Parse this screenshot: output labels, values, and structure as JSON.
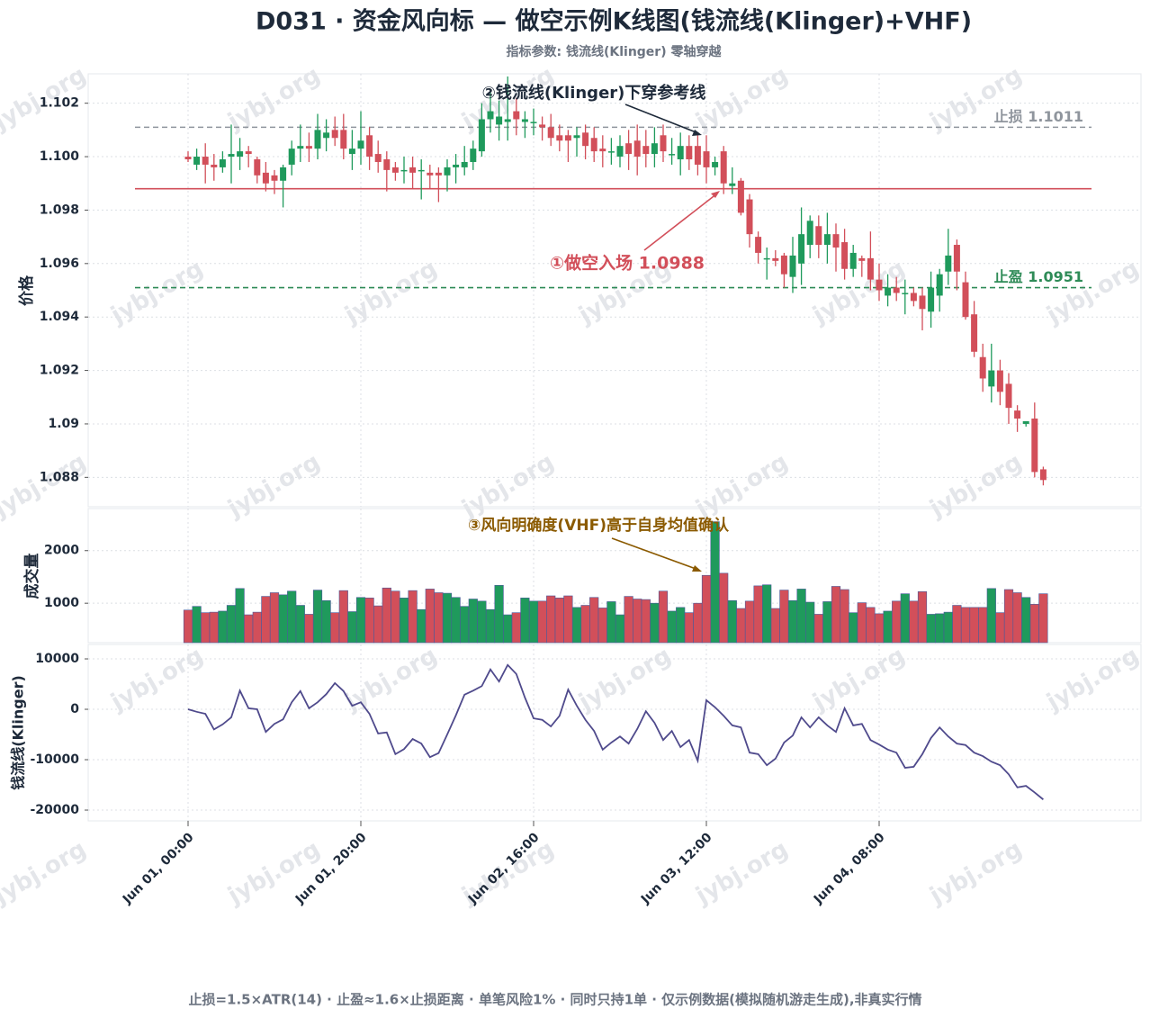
{
  "watermark": "jybj.org",
  "footer": "止损=1.5×ATR(14) · 止盈≈1.6×止损距离 · 单笔风险1% · 同时只持1单 · 仅示例数据(模拟随机游走生成),非真实行情",
  "chart_data": [
    {
      "type": "candlestick",
      "title": "D031 · 资金风向标 — 做空示例K线图(钱流线(Klinger)+VHF)",
      "subtitle": "指标参数: 钱流线(Klinger) 零轴穿越",
      "ylabel": "价格",
      "annotation": "②钱流线(Klinger)下穿参考线",
      "up_color": "#1f9a5c",
      "down_color": "#d24f5a",
      "categories": [
        "Jun 01, 00:00",
        null,
        null,
        null,
        null,
        null,
        null,
        null,
        null,
        null,
        null,
        null,
        null,
        null,
        null,
        null,
        null,
        null,
        null,
        null,
        "Jun 01, 20:00",
        null,
        null,
        null,
        null,
        null,
        null,
        null,
        null,
        null,
        null,
        null,
        null,
        null,
        null,
        null,
        null,
        null,
        null,
        null,
        "Jun 02, 16:00",
        null,
        null,
        null,
        null,
        null,
        null,
        null,
        null,
        null,
        null,
        null,
        null,
        null,
        null,
        null,
        null,
        null,
        null,
        null,
        "Jun 03, 12:00",
        null,
        null,
        null,
        null,
        null,
        null,
        null,
        null,
        null,
        null,
        null,
        null,
        null,
        null,
        null,
        null,
        null,
        null,
        null,
        "Jun 04, 08:00",
        null,
        null,
        null,
        null,
        null,
        null,
        null,
        null,
        null,
        null,
        null,
        null,
        null,
        null,
        null,
        null,
        null,
        null,
        null
      ],
      "open": [
        1.1,
        1.0997,
        1.1,
        1.0997,
        1.0996,
        1.1,
        1.1,
        1.1002,
        1.0999,
        1.0994,
        1.0993,
        1.0991,
        1.0997,
        1.1003,
        1.1004,
        1.1003,
        1.1007,
        1.101,
        1.101,
        1.1001,
        1.1003,
        1.1008,
        1.1001,
        1.0999,
        1.0996,
        1.0995,
        1.0996,
        1.0995,
        1.0994,
        1.0994,
        1.0993,
        1.0996,
        1.0996,
        1.0998,
        1.1002,
        1.1014,
        1.1012,
        1.1013,
        1.1017,
        1.1013,
        1.1013,
        1.1012,
        1.1011,
        1.1008,
        1.1008,
        1.1007,
        1.1009,
        1.1007,
        1.1003,
        1.1002,
        1.1,
        1.1005,
        1.1006,
        1.1004,
        1.1001,
        1.1008,
        1.1001,
        1.0999,
        1.1004,
        1.1004,
        1.1002,
        1.0996,
        1.1002,
        1.0989,
        1.0991,
        1.0984,
        1.097,
        1.0962,
        1.0962,
        1.0963,
        1.0955,
        1.096,
        1.0967,
        1.0974,
        1.0967,
        1.0971,
        1.0968,
        1.0958,
        1.0962,
        1.0962,
        1.0954,
        1.0948,
        1.0951,
        1.0949,
        1.0949,
        1.0948,
        1.0942,
        1.0948,
        1.0957,
        1.0967,
        1.0953,
        1.0941,
        1.0925,
        1.0914,
        1.092,
        1.0915,
        1.0905,
        1.09,
        1.0902,
        1.0883
      ],
      "high": [
        1.1002,
        1.1003,
        1.1005,
        1.1001,
        1.1002,
        1.1012,
        1.1007,
        1.1004,
        1.1,
        1.0998,
        1.0995,
        1.0997,
        1.1006,
        1.1012,
        1.1009,
        1.1016,
        1.1014,
        1.1015,
        1.1016,
        1.101,
        1.1017,
        1.1011,
        1.1006,
        1.1002,
        1.0998,
        1.1,
        1.1,
        1.0999,
        1.0997,
        1.0996,
        1.0999,
        1.1001,
        1.1004,
        1.1006,
        1.102,
        1.1024,
        1.1021,
        1.103,
        1.1022,
        1.1017,
        1.1018,
        1.1015,
        1.1016,
        1.1012,
        1.101,
        1.1011,
        1.1012,
        1.1011,
        1.1008,
        1.1007,
        1.1008,
        1.101,
        1.1012,
        1.101,
        1.1011,
        1.1012,
        1.1007,
        1.1009,
        1.1008,
        1.1008,
        1.1008,
        1.1,
        1.1004,
        1.0996,
        1.0992,
        1.0986,
        1.0972,
        1.0966,
        1.0965,
        1.0964,
        1.097,
        1.0981,
        1.0978,
        1.0978,
        1.0979,
        1.0975,
        1.0973,
        1.0967,
        1.0963,
        1.0972,
        1.096,
        1.0956,
        1.0955,
        1.0954,
        1.0951,
        1.0951,
        1.0957,
        1.0958,
        1.0973,
        1.0969,
        1.0957,
        1.0946,
        1.093,
        1.093,
        1.0924,
        1.0919,
        1.0907,
        1.0901,
        1.0908,
        1.0884
      ],
      "low": [
        1.0998,
        1.0995,
        1.099,
        1.0991,
        1.0994,
        1.099,
        1.0995,
        1.0996,
        1.099,
        1.0987,
        1.0986,
        1.0981,
        1.0993,
        1.0998,
        1.0998,
        1.0999,
        1.1002,
        1.1004,
        1.0999,
        1.0995,
        1.0997,
        1.0995,
        1.0994,
        1.0987,
        1.0991,
        1.099,
        1.0988,
        1.0984,
        1.0988,
        1.0983,
        1.0987,
        1.099,
        1.0993,
        1.0995,
        1.1,
        1.1009,
        1.1006,
        1.1006,
        1.1008,
        1.1007,
        1.1008,
        1.1006,
        1.1004,
        1.1002,
        1.0998,
        1.1,
        1.0999,
        1.0998,
        1.0996,
        1.0997,
        1.0996,
        1.0995,
        1.0993,
        1.0996,
        1.0996,
        1.0998,
        1.0997,
        1.0993,
        1.0995,
        1.0993,
        1.099,
        1.0993,
        1.0986,
        1.0986,
        1.0978,
        1.0966,
        1.096,
        1.0954,
        1.0959,
        1.0951,
        1.0949,
        1.0952,
        1.0962,
        1.0962,
        1.096,
        1.0957,
        1.0954,
        1.0955,
        1.0955,
        1.095,
        1.0946,
        1.0944,
        1.0946,
        1.0941,
        1.0944,
        1.0935,
        1.0936,
        1.0942,
        1.0952,
        1.095,
        1.0939,
        1.0925,
        1.0912,
        1.0908,
        1.0907,
        1.09,
        1.0897,
        1.0899,
        1.088,
        1.0877
      ],
      "close": [
        1.0999,
        1.1,
        1.0997,
        1.0996,
        1.0999,
        1.1001,
        1.1002,
        1.1001,
        1.0993,
        1.099,
        1.0991,
        1.0996,
        1.1003,
        1.1004,
        1.1003,
        1.101,
        1.1009,
        1.1007,
        1.1003,
        1.1003,
        1.1006,
        1.1,
        1.0998,
        1.0995,
        1.0994,
        1.0995,
        1.0994,
        1.0995,
        1.0993,
        1.0993,
        1.0996,
        1.0997,
        1.0998,
        1.1003,
        1.1014,
        1.1017,
        1.1015,
        1.1014,
        1.1014,
        1.1014,
        1.1013,
        1.1011,
        1.1007,
        1.1006,
        1.1006,
        1.1008,
        1.1004,
        1.1002,
        1.1002,
        1.1002,
        1.1004,
        1.1001,
        1.1,
        1.1001,
        1.1005,
        1.1002,
        1.1001,
        1.1004,
        1.0999,
        1.0997,
        1.0996,
        1.0998,
        1.099,
        1.099,
        1.0979,
        1.0971,
        1.0964,
        1.0962,
        1.0961,
        1.0956,
        1.0963,
        1.0971,
        1.0976,
        1.0967,
        1.0971,
        1.0966,
        1.0958,
        1.0964,
        1.0961,
        1.0954,
        1.095,
        1.0951,
        1.0949,
        1.0949,
        1.0946,
        1.0943,
        1.0951,
        1.0956,
        1.0963,
        1.0957,
        1.094,
        1.0927,
        1.0917,
        1.092,
        1.0912,
        1.0906,
        1.0902,
        1.0901,
        1.0882,
        1.0879
      ],
      "lines": [
        {
          "label": "止损 1.1011",
          "value": 1.1011,
          "color": "#8f959d",
          "style": "dashed"
        },
        {
          "label": "止盈 1.0951",
          "value": 1.0951,
          "color": "#2e8b57",
          "style": "dashed"
        },
        {
          "label": "①做空入场 1.0988",
          "value": 1.0988,
          "color": "#d24f5a",
          "style": "solid"
        }
      ],
      "ylim": [
        1.0869,
        1.1031
      ],
      "yticks": [
        {
          "value": 1.088,
          "label": "1.088"
        },
        1.09,
        1.092,
        1.094,
        1.096,
        1.098,
        {
          "value": 1.1,
          "label": "1.100"
        },
        1.102
      ],
      "grid": true
    },
    {
      "type": "bar",
      "ylabel": "成交量",
      "annotation": "③风向明确度(VHF)高于自身均值确认",
      "values": [
        870,
        940,
        820,
        830,
        850,
        960,
        1280,
        780,
        830,
        1130,
        1200,
        1160,
        1230,
        960,
        790,
        1250,
        1050,
        820,
        1240,
        840,
        1110,
        1100,
        950,
        1290,
        1230,
        1100,
        1240,
        880,
        1270,
        1200,
        1190,
        1110,
        940,
        1080,
        1040,
        880,
        1340,
        780,
        820,
        1100,
        1040,
        1040,
        1140,
        1100,
        1140,
        920,
        960,
        1110,
        910,
        1030,
        780,
        1130,
        1080,
        1070,
        1000,
        1230,
        850,
        920,
        820,
        1000,
        1530,
        2550,
        1570,
        1050,
        900,
        1040,
        1330,
        1350,
        900,
        1250,
        1050,
        1270,
        1020,
        790,
        1030,
        1320,
        1260,
        820,
        1010,
        920,
        800,
        850,
        1040,
        1180,
        1040,
        1220,
        790,
        800,
        830,
        960,
        920,
        920,
        920,
        1280,
        820,
        1260,
        1200,
        1110,
        980,
        1180
      ],
      "ylim": [
        250,
        2800
      ],
      "yticks": [
        1000,
        2000
      ],
      "grid": true
    },
    {
      "type": "line",
      "ylabel": "钱流线(Klinger)",
      "color": "#4f4a8c",
      "values": [
        0,
        -500,
        -900,
        -4000,
        -3000,
        -1600,
        3700,
        200,
        0,
        -4500,
        -2900,
        -2000,
        1400,
        3600,
        200,
        1400,
        3000,
        5200,
        3600,
        700,
        1400,
        -900,
        -4800,
        -4600,
        -8900,
        -7900,
        -5900,
        -6800,
        -9500,
        -8700,
        -5000,
        -1200,
        2900,
        3700,
        4600,
        7900,
        5500,
        8800,
        7000,
        2300,
        -1800,
        -2100,
        -3400,
        -1300,
        3900,
        700,
        -2100,
        -4300,
        -8000,
        -6600,
        -5400,
        -6800,
        -3900,
        -400,
        -2700,
        -6100,
        -4300,
        -7500,
        -6100,
        -10200,
        1800,
        400,
        -1300,
        -3200,
        -3600,
        -8600,
        -8900,
        -11100,
        -9800,
        -6600,
        -5200,
        -1600,
        -3600,
        -1600,
        -3200,
        -4500,
        200,
        -3200,
        -2900,
        -6100,
        -7000,
        -8000,
        -8600,
        -11600,
        -11400,
        -8900,
        -5700,
        -3600,
        -5400,
        -6800,
        -7100,
        -8600,
        -9300,
        -10400,
        -11100,
        -12900,
        -15500,
        -15200,
        -16500,
        -17900
      ],
      "ylim": [
        -22140,
        12860
      ],
      "yticks": [
        -20000,
        -10000,
        0,
        10000
      ],
      "grid": true
    }
  ]
}
